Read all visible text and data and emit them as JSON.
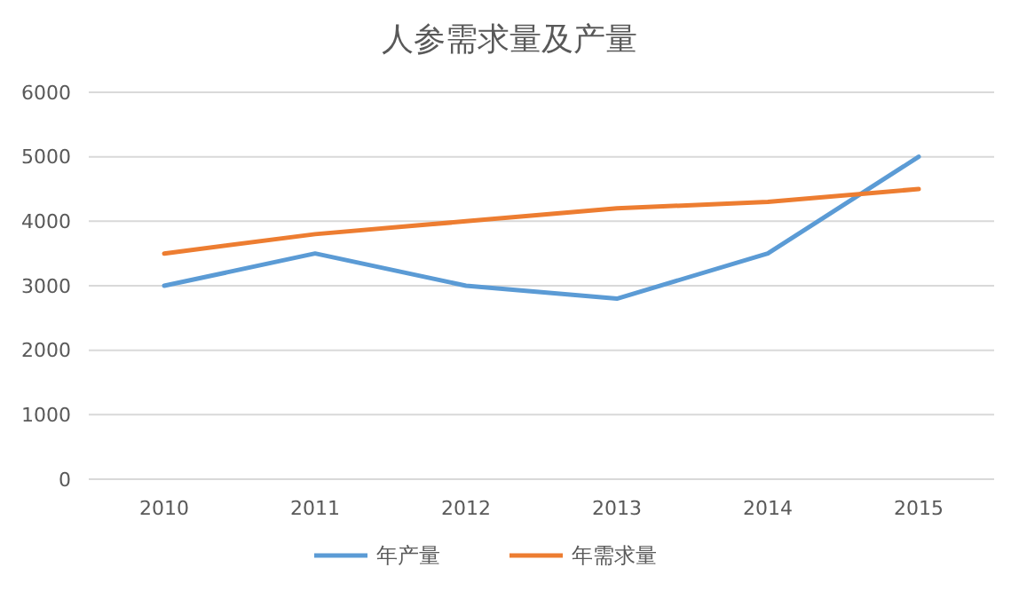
{
  "chart_data": {
    "type": "line",
    "title": "人参需求量及产量",
    "categories": [
      "2010",
      "2011",
      "2012",
      "2013",
      "2014",
      "2015"
    ],
    "series": [
      {
        "name": "年产量",
        "color": "#5b9bd5",
        "values": [
          3000,
          3500,
          3000,
          2800,
          3500,
          5000
        ]
      },
      {
        "name": "年需求量",
        "color": "#ed7d31",
        "values": [
          3500,
          3800,
          4000,
          4200,
          4300,
          4500
        ]
      }
    ],
    "ylim": [
      0,
      6000
    ],
    "yticks": [
      0,
      1000,
      2000,
      3000,
      4000,
      5000,
      6000
    ],
    "grid": "y",
    "legend": "bottom",
    "marker": "none",
    "line_style": "solid"
  }
}
